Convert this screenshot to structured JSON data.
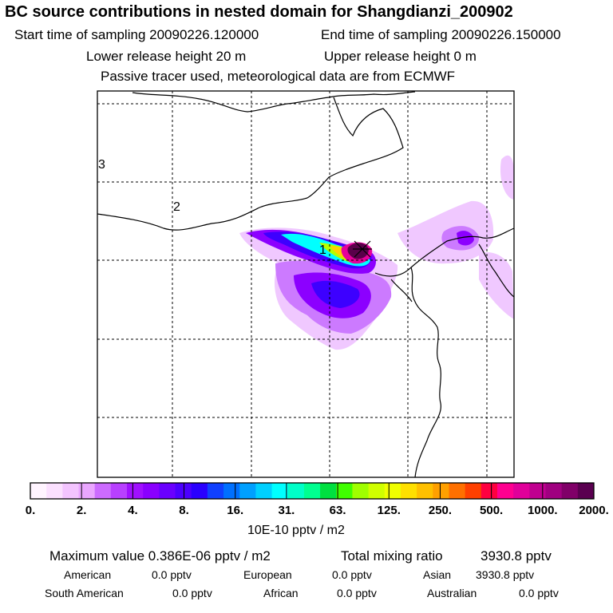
{
  "header": {
    "title": "BC  source contributions in nested domain for Shangdianzi_200902",
    "start_time": "Start time of sampling 20090226.120000",
    "end_time": "End time of sampling 20090226.150000",
    "lower_release": "Lower release height   20 m",
    "upper_release": "Upper release height    0 m",
    "tracer_note": "Passive tracer used, meteorological data are from ECMWF"
  },
  "map": {
    "region_labels": [
      "1",
      "2",
      "3"
    ],
    "station_marker": "x-cross",
    "plume_colors": {
      "core": "#5a004a",
      "high": "#e6009a",
      "mid_high": "#ffd200",
      "mid": "#b4ff00",
      "cyan": "#00ffff",
      "blue": "#3d00ff",
      "violet": "#8c00ff",
      "lilac": "#cc7aff",
      "pale": "#f0c8ff"
    }
  },
  "colorbar": {
    "colors": [
      "#fff4ff",
      "#fbe0ff",
      "#f3c4ff",
      "#eaa6ff",
      "#cc6bff",
      "#b840ff",
      "#a010ff",
      "#8a00ff",
      "#6a00ff",
      "#4c00ff",
      "#2a00ff",
      "#1040ff",
      "#0070ff",
      "#00a0ff",
      "#00d0ff",
      "#00ffff",
      "#00ffc8",
      "#00ff90",
      "#00e040",
      "#40ff00",
      "#a0ff00",
      "#d0ff00",
      "#f0ff00",
      "#ffe000",
      "#ffc000",
      "#ffa000",
      "#ff7000",
      "#ff4000",
      "#ff0040",
      "#ff0090",
      "#e0009a",
      "#c00090",
      "#a00080",
      "#800068",
      "#5a0050"
    ],
    "tick_labels": [
      "0.",
      "2.",
      "4.",
      "8.",
      "16.",
      "31.",
      "63.",
      "125.",
      "250.",
      "500.",
      "1000.",
      "2000."
    ],
    "unit_label": "10E-10 pptv / m2"
  },
  "summary": {
    "max_value": "Maximum value  0.386E-06 pptv / m2",
    "total_mixing": "Total mixing ratio",
    "total_value": "3930.8 pptv",
    "regions": [
      {
        "name": "American",
        "value": "0.0 pptv"
      },
      {
        "name": "European",
        "value": "0.0 pptv"
      },
      {
        "name": "Asian",
        "value": "3930.8 pptv"
      },
      {
        "name": "South American",
        "value": "0.0 pptv"
      },
      {
        "name": "African",
        "value": "0.0 pptv"
      },
      {
        "name": "Australian",
        "value": "0.0 pptv"
      }
    ]
  }
}
